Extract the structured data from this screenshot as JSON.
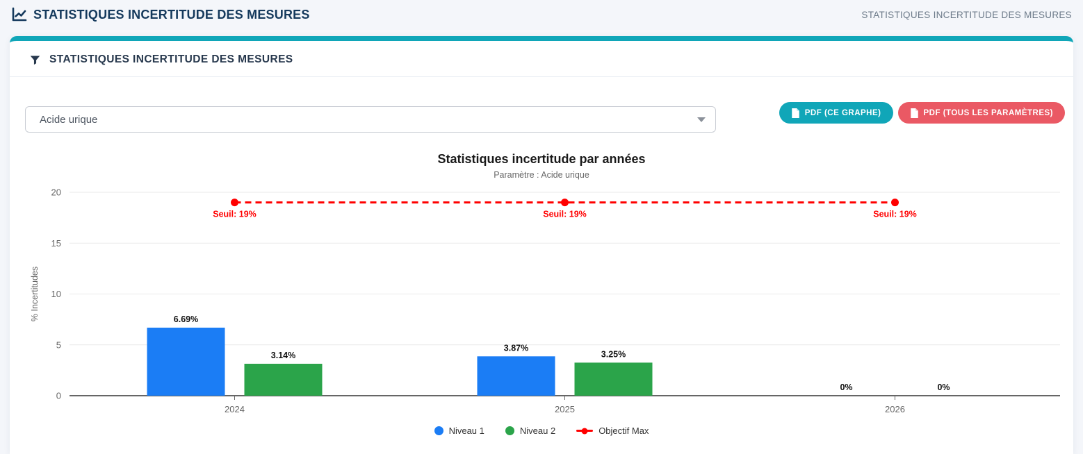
{
  "header": {
    "title": "STATISTIQUES INCERTITUDE DES MESURES",
    "breadcrumb": "STATISTIQUES INCERTITUDE DES MESURES"
  },
  "panel": {
    "title": "STATISTIQUES INCERTITUDE DES MESURES"
  },
  "filter": {
    "parameter_select": {
      "value": "Acide urique"
    }
  },
  "toolbar": {
    "pdf_graph_label": "PDF (CE GRAPHE)",
    "pdf_all_label": "PDF (TOUS LES PARAMÈTRES)"
  },
  "colors": {
    "accent_teal": "#10a6b8",
    "danger_red": "#ea5964",
    "navy": "#14395c",
    "chart_blue": "#1b7df5",
    "chart_green": "#2ba44a",
    "threshold_red": "#ff0000"
  },
  "chart_data": {
    "type": "bar",
    "title": "Statistiques incertitude par années",
    "subtitle": "Paramètre : Acide urique",
    "ylabel": "% Incertitudes",
    "ylim": [
      0,
      20
    ],
    "yticks": [
      0,
      5,
      10,
      15,
      20
    ],
    "grid": true,
    "legend_position": "bottom",
    "categories": [
      "2024",
      "2025",
      "2026"
    ],
    "series": [
      {
        "name": "Niveau 1",
        "color": "#1b7df5",
        "values": [
          6.69,
          3.87,
          0
        ],
        "labels": [
          "6.69%",
          "3.87%",
          "0%"
        ]
      },
      {
        "name": "Niveau 2",
        "color": "#2ba44a",
        "values": [
          3.14,
          3.25,
          0
        ],
        "labels": [
          "3.14%",
          "3.25%",
          "0%"
        ]
      }
    ],
    "threshold": {
      "name": "Objectif Max",
      "value": 19,
      "color": "#ff0000",
      "label": "Seuil: 19%"
    }
  }
}
